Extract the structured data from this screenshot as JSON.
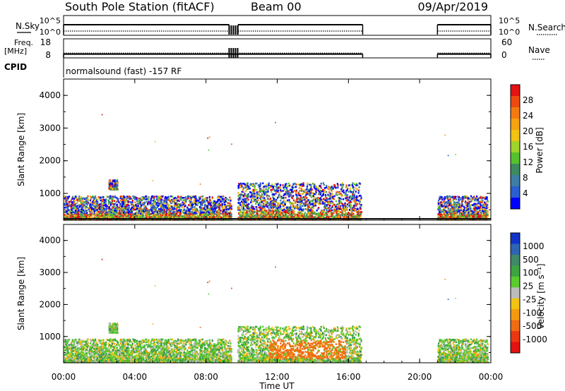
{
  "header": {
    "station": "South Pole Station (fitACF)",
    "beam": "Beam 00",
    "date": "09/Apr/2019"
  },
  "panels": {
    "nsky_label": "N.Sky",
    "nsky_ticks": [
      "10^5",
      "10^0"
    ],
    "nsearch_label": "N.Search",
    "nsearch_ticks": [
      "10^5",
      "10^0"
    ],
    "freq_label_top": "Freq.",
    "freq_label_bottom": "[MHz]",
    "freq_ticks": [
      "18",
      "8"
    ],
    "nave_label": "Nave",
    "nave_ticks": [
      "60",
      "0"
    ],
    "cpid_label": "CPID",
    "cpid_text": "normalsound (fast) -157 RF"
  },
  "axes": {
    "xlabel": "Time UT",
    "ylabel": "Slant Range [km]",
    "xticks": [
      "00:00",
      "04:00",
      "08:00",
      "12:00",
      "16:00",
      "20:00",
      "00:00"
    ],
    "xrange_hours": [
      0,
      24
    ],
    "yticks": [
      "1000",
      "2000",
      "3000",
      "4000"
    ],
    "yrange_km": [
      180,
      4500
    ]
  },
  "colorbars": {
    "power": {
      "label": "Power [dB]",
      "ticks": [
        "4",
        "8",
        "12",
        "16",
        "20",
        "24",
        "28"
      ],
      "colors": [
        "#0000ff",
        "#2a5fd0",
        "#3e7ea4",
        "#3d8a5e",
        "#55c22d",
        "#9fd42a",
        "#f2c311",
        "#f5a20f",
        "#f47a10",
        "#ee4a10",
        "#e41212"
      ]
    },
    "velocity": {
      "label": "Velocity [m s⁻¹]",
      "ticks": [
        "1000",
        "500",
        "100",
        "25",
        "-25",
        "-100",
        "-500",
        "-1000"
      ],
      "colors": [
        "#1033c8",
        "#2e64b4",
        "#3f8868",
        "#3ca441",
        "#59cc2e",
        "#bcbcbc",
        "#f2c311",
        "#f59a0f",
        "#f06c10",
        "#ea3811",
        "#e21212"
      ]
    }
  },
  "chart_data": {
    "type": "heatmap",
    "title": "South Pole Station (fitACF)",
    "xlabel": "Time UT",
    "ylabel": "Slant Range [km]",
    "x_range_hours": [
      0,
      24
    ],
    "y_range_km": [
      180,
      4500
    ],
    "data_gaps_hours": [
      [
        9.55,
        9.75
      ],
      [
        16.85,
        21.0
      ]
    ],
    "echo_regions": [
      {
        "from_hour": 0.0,
        "to_hour": 9.4,
        "range_km": [
          180,
          900
        ],
        "power_db": "4-28",
        "velocity": "-100 to 100"
      },
      {
        "from_hour": 2.5,
        "to_hour": 3.0,
        "range_km": [
          1100,
          1400
        ],
        "power_db": "8-16",
        "velocity": "-100 to 100"
      },
      {
        "from_hour": 9.7,
        "to_hour": 16.7,
        "range_km": [
          180,
          1300
        ],
        "power_db": "4-28",
        "velocity": "-500 to 100"
      },
      {
        "from_hour": 21.0,
        "to_hour": 23.8,
        "range_km": [
          180,
          900
        ],
        "power_db": "4-28",
        "velocity": "-100 to 100"
      }
    ],
    "nsky_trace": [
      {
        "from_hour": 0.0,
        "to_hour": 9.3,
        "level": "high"
      },
      {
        "from_hour": 9.3,
        "to_hour": 9.8,
        "level": "dropouts"
      },
      {
        "from_hour": 9.8,
        "to_hour": 16.8,
        "level": "high"
      },
      {
        "from_hour": 21.0,
        "to_hour": 24.0,
        "level": "high"
      }
    ],
    "freq_trace_mhz": [
      {
        "from_hour": 0.0,
        "to_hour": 16.8,
        "value": 10
      },
      {
        "from_hour": 21.0,
        "to_hour": 24.0,
        "value": 10
      }
    ],
    "nave_trace": [
      {
        "from_hour": 0.0,
        "to_hour": 16.8,
        "value": 15
      },
      {
        "from_hour": 21.0,
        "to_hour": 24.0,
        "value": 15
      }
    ]
  }
}
